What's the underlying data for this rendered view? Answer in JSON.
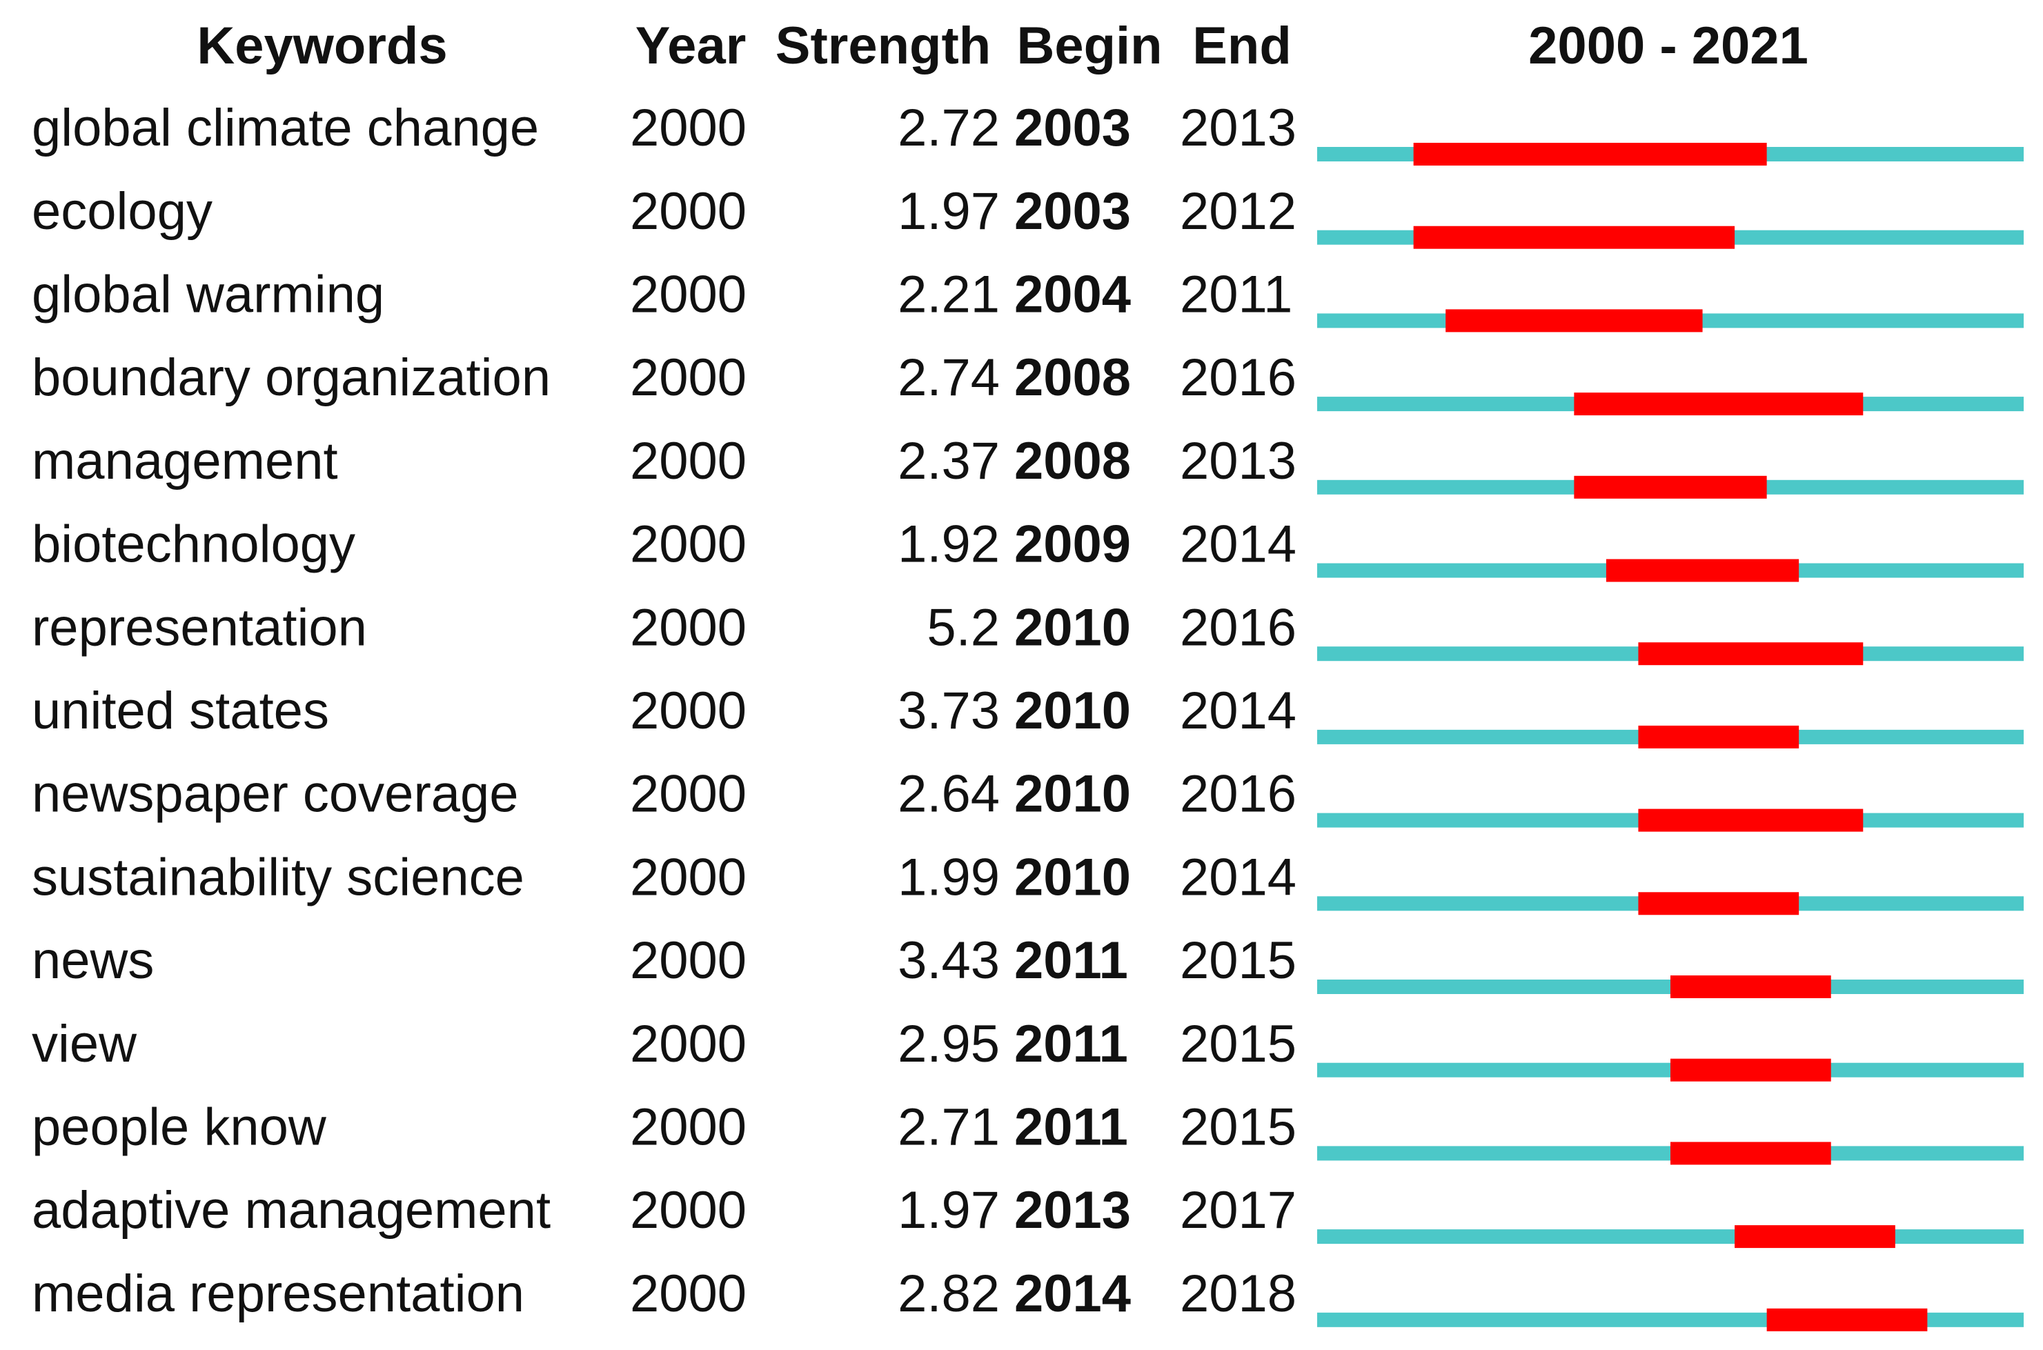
{
  "chart_data": {
    "type": "burst",
    "headers": [
      "Keywords",
      "Year",
      "Strength",
      "Begin",
      "End"
    ],
    "title": "2000 - 2021",
    "keywords": [
      "global climate change",
      "ecology",
      "global warming",
      "boundary organization",
      "management",
      "biotechnology",
      "representation",
      "united states",
      "newspaper coverage",
      "sustainability science",
      "news",
      "view",
      "people know",
      "adaptive management",
      "media representation"
    ],
    "year": [
      2000,
      2000,
      2000,
      2000,
      2000,
      2000,
      2000,
      2000,
      2000,
      2000,
      2000,
      2000,
      2000,
      2000,
      2000
    ],
    "strength": [
      2.72,
      1.97,
      2.21,
      2.74,
      2.37,
      1.92,
      5.2,
      3.73,
      2.64,
      1.99,
      3.43,
      2.95,
      2.71,
      1.97,
      2.82
    ],
    "begin": [
      2003,
      2003,
      2004,
      2008,
      2008,
      2009,
      2010,
      2010,
      2010,
      2010,
      2011,
      2011,
      2011,
      2013,
      2014
    ],
    "end": [
      2013,
      2012,
      2011,
      2016,
      2013,
      2014,
      2016,
      2014,
      2016,
      2014,
      2015,
      2015,
      2015,
      2017,
      2018
    ],
    "xlim": [
      2000,
      2021
    ],
    "colors": {
      "line": "#4cc8c8",
      "burst": "#ff0000"
    }
  }
}
